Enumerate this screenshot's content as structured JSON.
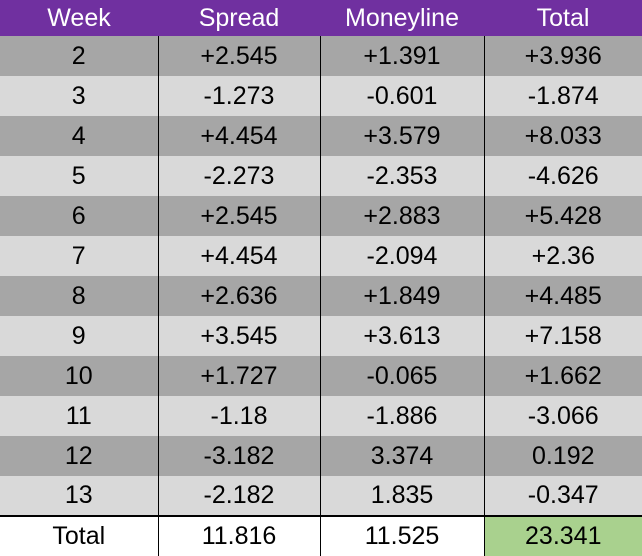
{
  "headers": [
    "Week",
    "Spread",
    "Moneyline",
    "Total"
  ],
  "rows": [
    [
      "2",
      "+2.545",
      "+1.391",
      "+3.936"
    ],
    [
      "3",
      "-1.273",
      "-0.601",
      "-1.874"
    ],
    [
      "4",
      "+4.454",
      "+3.579",
      "+8.033"
    ],
    [
      "5",
      "-2.273",
      "-2.353",
      "-4.626"
    ],
    [
      "6",
      "+2.545",
      "+2.883",
      "+5.428"
    ],
    [
      "7",
      "+4.454",
      "-2.094",
      "+2.36"
    ],
    [
      "8",
      "+2.636",
      "+1.849",
      "+4.485"
    ],
    [
      "9",
      "+3.545",
      "+3.613",
      "+7.158"
    ],
    [
      "10",
      "+1.727",
      "-0.065",
      "+1.662"
    ],
    [
      "11",
      "-1.18",
      "-1.886",
      "-3.066"
    ],
    [
      "12",
      "-3.182",
      "3.374",
      "0.192"
    ],
    [
      "13",
      "-2.182",
      "1.835",
      "-0.347"
    ]
  ],
  "totals": [
    "Total",
    "11.816",
    "11.525",
    "23.341"
  ],
  "colors": {
    "header_bg": "#7030a0",
    "header_text": "#ffffff",
    "row_dark": "#a6a6a6",
    "row_light": "#d9d9d9",
    "grand_total_bg": "#a9d18e"
  }
}
